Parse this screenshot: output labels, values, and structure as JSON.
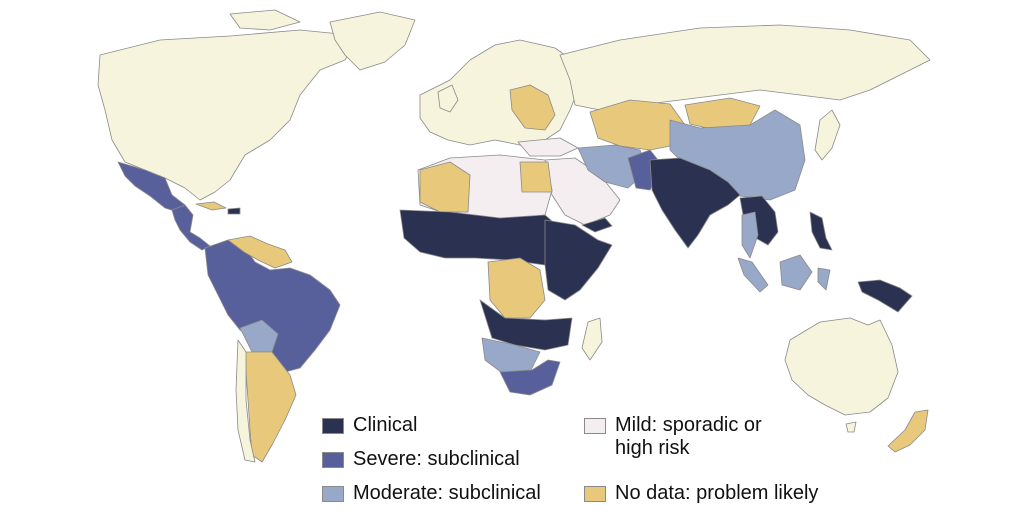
{
  "colors": {
    "clinical": "#2b3150",
    "severe": "#58609b",
    "moderate": "#98a8c8",
    "mild": "#f4eef0",
    "no_data": "#e8c97c",
    "not_endemic": "#f6f4dc",
    "background": "#ffffff"
  },
  "legend": {
    "items": [
      {
        "key": "clinical",
        "label": "Clinical",
        "color": "#2b3150"
      },
      {
        "key": "severe",
        "label": "Severe: subclinical",
        "color": "#58609b"
      },
      {
        "key": "moderate",
        "label": "Moderate: subclinical",
        "color": "#98a8c8"
      },
      {
        "key": "mild",
        "label_line1": "Mild: sporadic or",
        "label_line2": "high risk",
        "color": "#f4eef0"
      },
      {
        "key": "no_data",
        "label": "No data: problem likely",
        "color": "#e8c97c"
      }
    ]
  }
}
